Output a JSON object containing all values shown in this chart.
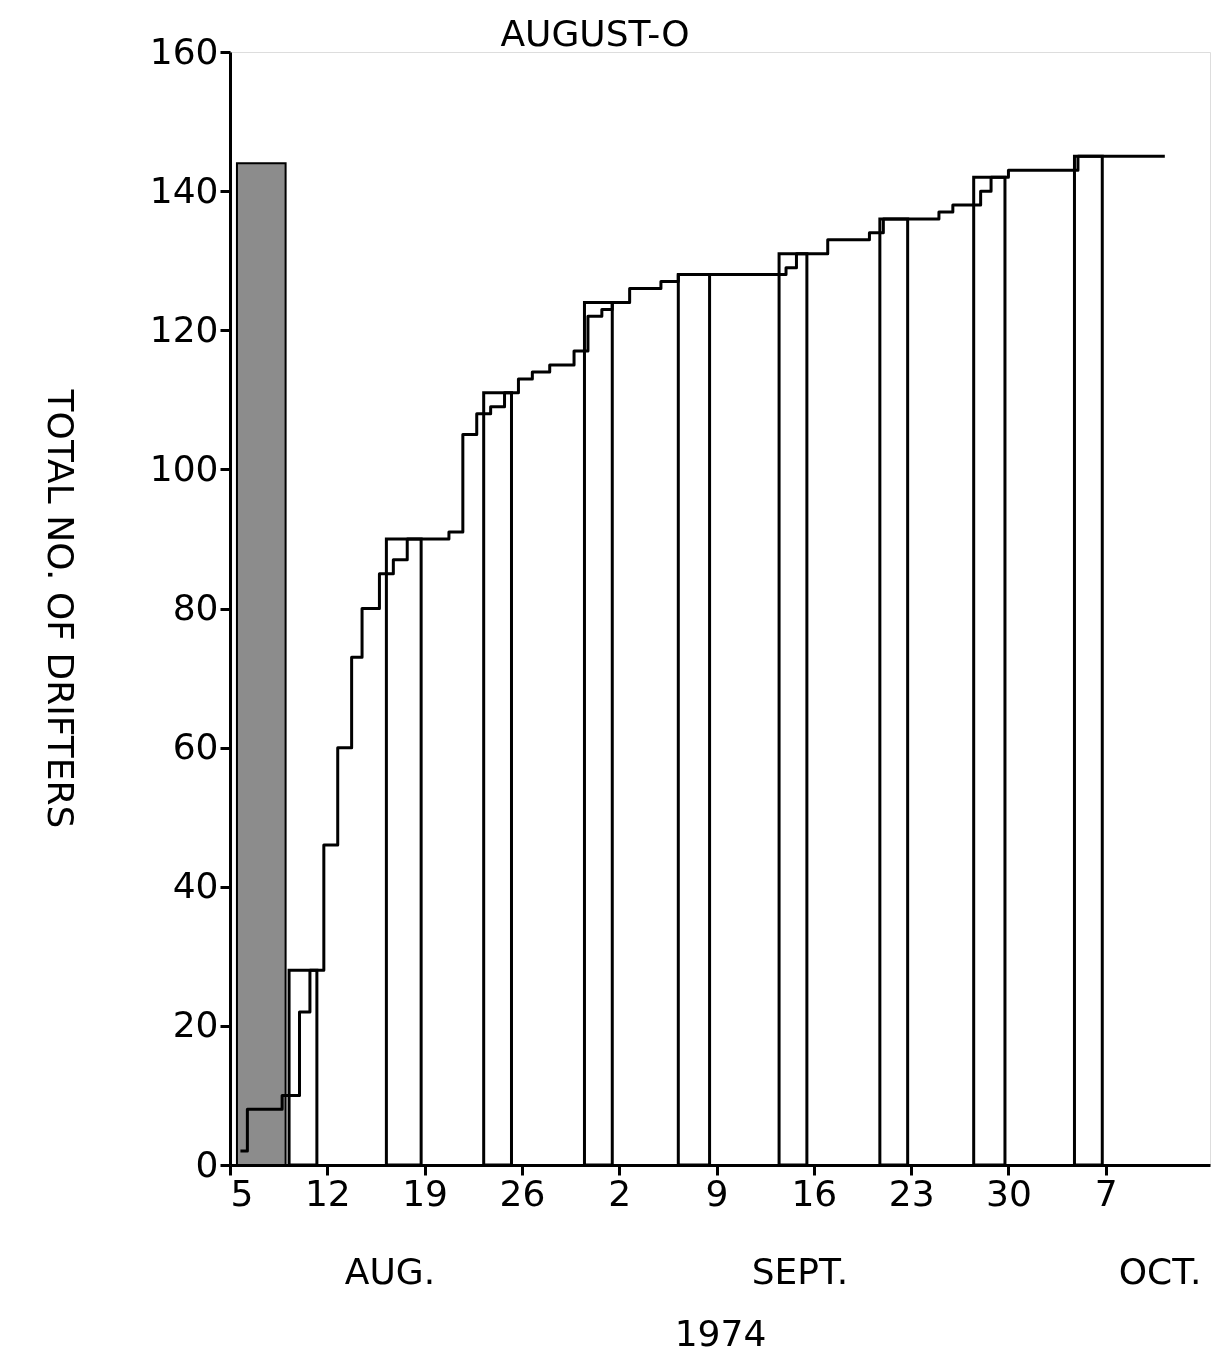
{
  "chart_data": {
    "type": "step",
    "title": "AUGUST-O",
    "xlabel": "1974",
    "ylabel": "TOTAL NO. OF DRIFTERS",
    "annotations": [
      "AUG.",
      "SEPT.",
      "OCT."
    ],
    "xlim": [
      "1974-08-05",
      "1974-10-14T12:00"
    ],
    "xticks": [
      {
        "value": "1974-08-05",
        "label": "5"
      },
      {
        "value": "1974-08-12",
        "label": "12"
      },
      {
        "value": "1974-08-19",
        "label": "19"
      },
      {
        "value": "1974-08-26",
        "label": "26"
      },
      {
        "value": "1974-09-02",
        "label": "2"
      },
      {
        "value": "1974-09-09",
        "label": "9"
      },
      {
        "value": "1974-09-16",
        "label": "16"
      },
      {
        "value": "1974-09-23",
        "label": "23"
      },
      {
        "value": "1974-09-30",
        "label": "30"
      },
      {
        "value": "1974-10-07",
        "label": "7"
      }
    ],
    "ylim": [
      0,
      160
    ],
    "yticks": [
      0,
      20,
      40,
      60,
      80,
      100,
      120,
      140,
      160
    ],
    "grid": false,
    "series": [
      {
        "type": "area",
        "color": "#000000",
        "x": [
          "1974-08-05T12:00",
          "1974-08-09"
        ],
        "values": [
          144,
          144
        ]
      },
      {
        "color": "#000000",
        "x": [
          "1974-08-05T18:00",
          "1974-08-06T06:00",
          "1974-08-08T18:00",
          "1974-08-10",
          "1974-08-10T18:00",
          "1974-08-11T18:00",
          "1974-08-12T18:00",
          "1974-08-13T18:00",
          "1974-08-14T12:00",
          "1974-08-15T18:00",
          "1974-08-16T18:00",
          "1974-08-17T18:00",
          "1974-08-20T18:00",
          "1974-08-21T18:00",
          "1974-08-22T18:00",
          "1974-08-23T18:00",
          "1974-08-24T18:00",
          "1974-08-25T18:00",
          "1974-08-26T18:00",
          "1974-08-28",
          "1974-08-29T18:00",
          "1974-08-30T18:00",
          "1974-08-31T18:00",
          "1974-09-01T12:00",
          "1974-09-02T18:00",
          "1974-09-05",
          "1974-09-06T06:00",
          "1974-09-14",
          "1974-09-14T18:00",
          "1974-09-17",
          "1974-09-20",
          "1974-09-21",
          "1974-09-25",
          "1974-09-26",
          "1974-09-28",
          "1974-09-28T18:00",
          "1974-09-30",
          "1974-10-05",
          "1974-10-11T06:00"
        ],
        "values": [
          2,
          8,
          10,
          22,
          28,
          46,
          60,
          73,
          80,
          85,
          87,
          90,
          91,
          105,
          108,
          109,
          111,
          113,
          114,
          115,
          117,
          122,
          123,
          124,
          126,
          127,
          128,
          129,
          131,
          133,
          134,
          136,
          137,
          138,
          140,
          142,
          143,
          145,
          145
        ]
      }
    ],
    "bands": [
      {
        "axis": "x",
        "from": "1974-08-09T06:00",
        "to": "1974-08-11T06:00",
        "color": "#ffffff"
      },
      {
        "axis": "x",
        "from": "1974-08-16T06:00",
        "to": "1974-08-18T18:00",
        "color": "#ffffff"
      },
      {
        "axis": "x",
        "from": "1974-08-23T06:00",
        "to": "1974-08-25T06:00",
        "color": "#ffffff"
      },
      {
        "axis": "x",
        "from": "1974-08-30T12:00",
        "to": "1974-09-01T12:00",
        "color": "#ffffff"
      },
      {
        "axis": "x",
        "from": "1974-09-06T06:00",
        "to": "1974-09-08T12:00",
        "color": "#ffffff"
      },
      {
        "axis": "x",
        "from": "1974-09-13T12:00",
        "to": "1974-09-15T12:00",
        "color": "#ffffff"
      },
      {
        "axis": "x",
        "from": "1974-09-20T18:00",
        "to": "1974-09-22T18:00",
        "color": "#ffffff"
      },
      {
        "axis": "x",
        "from": "1974-09-27T12:00",
        "to": "1974-09-29T18:00",
        "color": "#ffffff"
      },
      {
        "axis": "x",
        "from": "1974-10-04T18:00",
        "to": "1974-10-06T18:00",
        "color": "#ffffff"
      }
    ]
  }
}
